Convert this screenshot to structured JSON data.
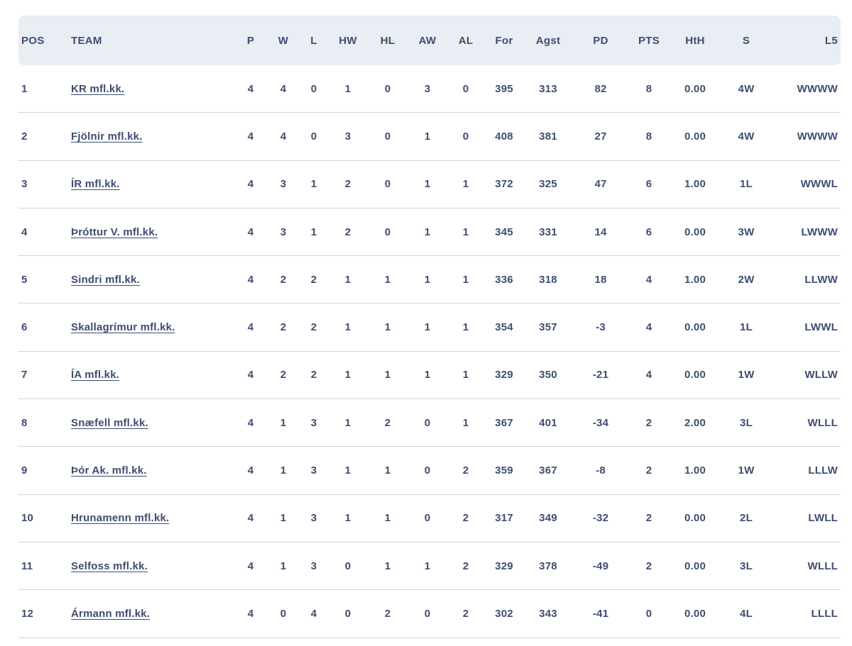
{
  "colors": {
    "text_navy": "#3e4d71",
    "header_bg": "#e9edf4",
    "row_divider": "#ccd3e2",
    "background": "#ffffff"
  },
  "table": {
    "columns": [
      {
        "key": "pos",
        "label": "POS"
      },
      {
        "key": "team",
        "label": "TEAM"
      },
      {
        "key": "p",
        "label": "P"
      },
      {
        "key": "w",
        "label": "W"
      },
      {
        "key": "l",
        "label": "L"
      },
      {
        "key": "hw",
        "label": "HW"
      },
      {
        "key": "hl",
        "label": "HL"
      },
      {
        "key": "aw",
        "label": "AW"
      },
      {
        "key": "al",
        "label": "AL"
      },
      {
        "key": "for",
        "label": "For"
      },
      {
        "key": "agst",
        "label": "Agst"
      },
      {
        "key": "pd",
        "label": "PD"
      },
      {
        "key": "pts",
        "label": "PTS"
      },
      {
        "key": "hth",
        "label": "HtH"
      },
      {
        "key": "s",
        "label": "S"
      },
      {
        "key": "l5",
        "label": "L5"
      }
    ],
    "rows": [
      {
        "pos": "1",
        "team": "KR mfl.kk.",
        "p": "4",
        "w": "4",
        "l": "0",
        "hw": "1",
        "hl": "0",
        "aw": "3",
        "al": "0",
        "for": "395",
        "agst": "313",
        "pd": "82",
        "pts": "8",
        "hth": "0.00",
        "s": "4W",
        "l5": "WWWW"
      },
      {
        "pos": "2",
        "team": "Fjölnir mfl.kk.",
        "p": "4",
        "w": "4",
        "l": "0",
        "hw": "3",
        "hl": "0",
        "aw": "1",
        "al": "0",
        "for": "408",
        "agst": "381",
        "pd": "27",
        "pts": "8",
        "hth": "0.00",
        "s": "4W",
        "l5": "WWWW"
      },
      {
        "pos": "3",
        "team": "ÍR mfl.kk.",
        "p": "4",
        "w": "3",
        "l": "1",
        "hw": "2",
        "hl": "0",
        "aw": "1",
        "al": "1",
        "for": "372",
        "agst": "325",
        "pd": "47",
        "pts": "6",
        "hth": "1.00",
        "s": "1L",
        "l5": "WWWL"
      },
      {
        "pos": "4",
        "team": "Þróttur V. mfl.kk.",
        "p": "4",
        "w": "3",
        "l": "1",
        "hw": "2",
        "hl": "0",
        "aw": "1",
        "al": "1",
        "for": "345",
        "agst": "331",
        "pd": "14",
        "pts": "6",
        "hth": "0.00",
        "s": "3W",
        "l5": "LWWW"
      },
      {
        "pos": "5",
        "team": "Sindri mfl.kk.",
        "p": "4",
        "w": "2",
        "l": "2",
        "hw": "1",
        "hl": "1",
        "aw": "1",
        "al": "1",
        "for": "336",
        "agst": "318",
        "pd": "18",
        "pts": "4",
        "hth": "1.00",
        "s": "2W",
        "l5": "LLWW"
      },
      {
        "pos": "6",
        "team": "Skallagrímur mfl.kk.",
        "p": "4",
        "w": "2",
        "l": "2",
        "hw": "1",
        "hl": "1",
        "aw": "1",
        "al": "1",
        "for": "354",
        "agst": "357",
        "pd": "-3",
        "pts": "4",
        "hth": "0.00",
        "s": "1L",
        "l5": "LWWL"
      },
      {
        "pos": "7",
        "team": "ÍA mfl.kk.",
        "p": "4",
        "w": "2",
        "l": "2",
        "hw": "1",
        "hl": "1",
        "aw": "1",
        "al": "1",
        "for": "329",
        "agst": "350",
        "pd": "-21",
        "pts": "4",
        "hth": "0.00",
        "s": "1W",
        "l5": "WLLW"
      },
      {
        "pos": "8",
        "team": "Snæfell mfl.kk.",
        "p": "4",
        "w": "1",
        "l": "3",
        "hw": "1",
        "hl": "2",
        "aw": "0",
        "al": "1",
        "for": "367",
        "agst": "401",
        "pd": "-34",
        "pts": "2",
        "hth": "2.00",
        "s": "3L",
        "l5": "WLLL"
      },
      {
        "pos": "9",
        "team": "Þór Ak. mfl.kk.",
        "p": "4",
        "w": "1",
        "l": "3",
        "hw": "1",
        "hl": "1",
        "aw": "0",
        "al": "2",
        "for": "359",
        "agst": "367",
        "pd": "-8",
        "pts": "2",
        "hth": "1.00",
        "s": "1W",
        "l5": "LLLW"
      },
      {
        "pos": "10",
        "team": "Hrunamenn mfl.kk.",
        "p": "4",
        "w": "1",
        "l": "3",
        "hw": "1",
        "hl": "1",
        "aw": "0",
        "al": "2",
        "for": "317",
        "agst": "349",
        "pd": "-32",
        "pts": "2",
        "hth": "0.00",
        "s": "2L",
        "l5": "LWLL"
      },
      {
        "pos": "11",
        "team": "Selfoss mfl.kk.",
        "p": "4",
        "w": "1",
        "l": "3",
        "hw": "0",
        "hl": "1",
        "aw": "1",
        "al": "2",
        "for": "329",
        "agst": "378",
        "pd": "-49",
        "pts": "2",
        "hth": "0.00",
        "s": "3L",
        "l5": "WLLL"
      },
      {
        "pos": "12",
        "team": "Ármann mfl.kk.",
        "p": "4",
        "w": "0",
        "l": "4",
        "hw": "0",
        "hl": "2",
        "aw": "0",
        "al": "2",
        "for": "302",
        "agst": "343",
        "pd": "-41",
        "pts": "0",
        "hth": "0.00",
        "s": "4L",
        "l5": "LLLL"
      }
    ]
  }
}
